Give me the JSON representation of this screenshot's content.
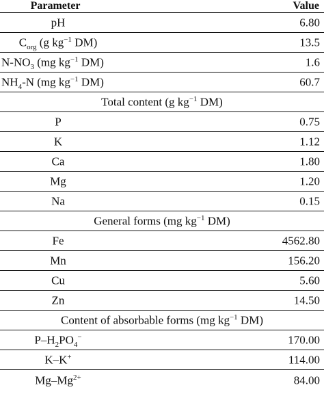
{
  "header": {
    "parameter": "Parameter",
    "value": "Value"
  },
  "rows": [
    {
      "parameter": "pH",
      "value": "6.80"
    },
    {
      "parameter_prefix": "C",
      "parameter_sub": "org",
      "parameter_mid": " (g kg",
      "parameter_sup": "−1",
      "parameter_suffix": " DM)",
      "value": "13.5"
    },
    {
      "parameter_prefix": "N-NO",
      "parameter_sub": "3",
      "parameter_suffix": " (mg kg",
      "parameter_sup": "−1",
      "parameter_tail": " DM)",
      "value": "1.6"
    },
    {
      "parameter_prefix": "NH",
      "parameter_sub": "4",
      "parameter_suffix": "-N (mg kg",
      "parameter_sup": "−1",
      "parameter_tail": " DM)",
      "value": "60.7"
    }
  ],
  "sections": {
    "total_content": {
      "title_prefix": "Total content (g kg",
      "title_sup": "−1",
      "title_suffix": " DM)",
      "rows": [
        {
          "parameter": "P",
          "value": "0.75"
        },
        {
          "parameter": "K",
          "value": "1.12"
        },
        {
          "parameter": "Ca",
          "value": "1.80"
        },
        {
          "parameter": "Mg",
          "value": "1.20"
        },
        {
          "parameter": "Na",
          "value": "0.15"
        }
      ]
    },
    "general_forms": {
      "title_prefix": "General forms (mg kg",
      "title_sup": "−1",
      "title_suffix": " DM)",
      "rows": [
        {
          "parameter": "Fe",
          "value": "4562.80"
        },
        {
          "parameter": "Mn",
          "value": "156.20"
        },
        {
          "parameter": "Cu",
          "value": "5.60"
        },
        {
          "parameter": "Zn",
          "value": "14.50"
        }
      ]
    },
    "absorbable_forms": {
      "title_prefix": "Content of absorbable forms (mg kg",
      "title_sup": "−1",
      "title_suffix": " DM)",
      "rows": [
        {
          "parameter_prefix": "P–H",
          "parameter_sub1": "2",
          "parameter_mid": "PO",
          "parameter_sub2": "4",
          "parameter_sup": "−",
          "value": "170.00"
        },
        {
          "parameter_prefix": "K–K",
          "parameter_sup": "+",
          "value": "114.00"
        },
        {
          "parameter_prefix": "Mg–Mg",
          "parameter_sup": "2+",
          "value": "84.00"
        }
      ]
    }
  }
}
